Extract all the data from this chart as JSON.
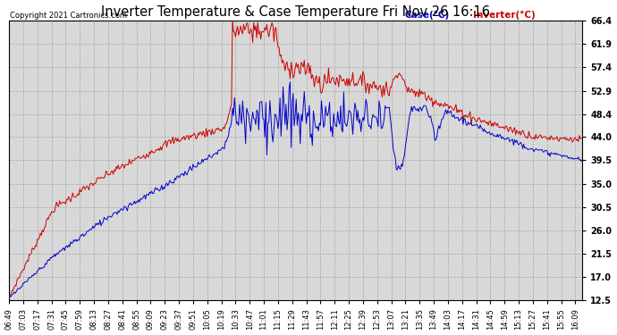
{
  "title": "Inverter Temperature & Case Temperature Fri Nov 26 16:16",
  "copyright": "Copyright 2021 Cartronics.com",
  "legend_case": "Case(°C)",
  "legend_inverter": "Inverter(°C)",
  "case_color": "#0000cc",
  "inverter_color": "#cc0000",
  "background_color": "#ffffff",
  "plot_bg_color": "#d8d8d8",
  "grid_color": "#999999",
  "yticks": [
    12.5,
    17.0,
    21.5,
    26.0,
    30.5,
    35.0,
    39.5,
    44.0,
    48.4,
    52.9,
    57.4,
    61.9,
    66.4
  ],
  "ymin": 12.5,
  "ymax": 66.4,
  "figwidth": 6.9,
  "figheight": 3.75,
  "dpi": 100,
  "xtick_interval_minutes": 14
}
